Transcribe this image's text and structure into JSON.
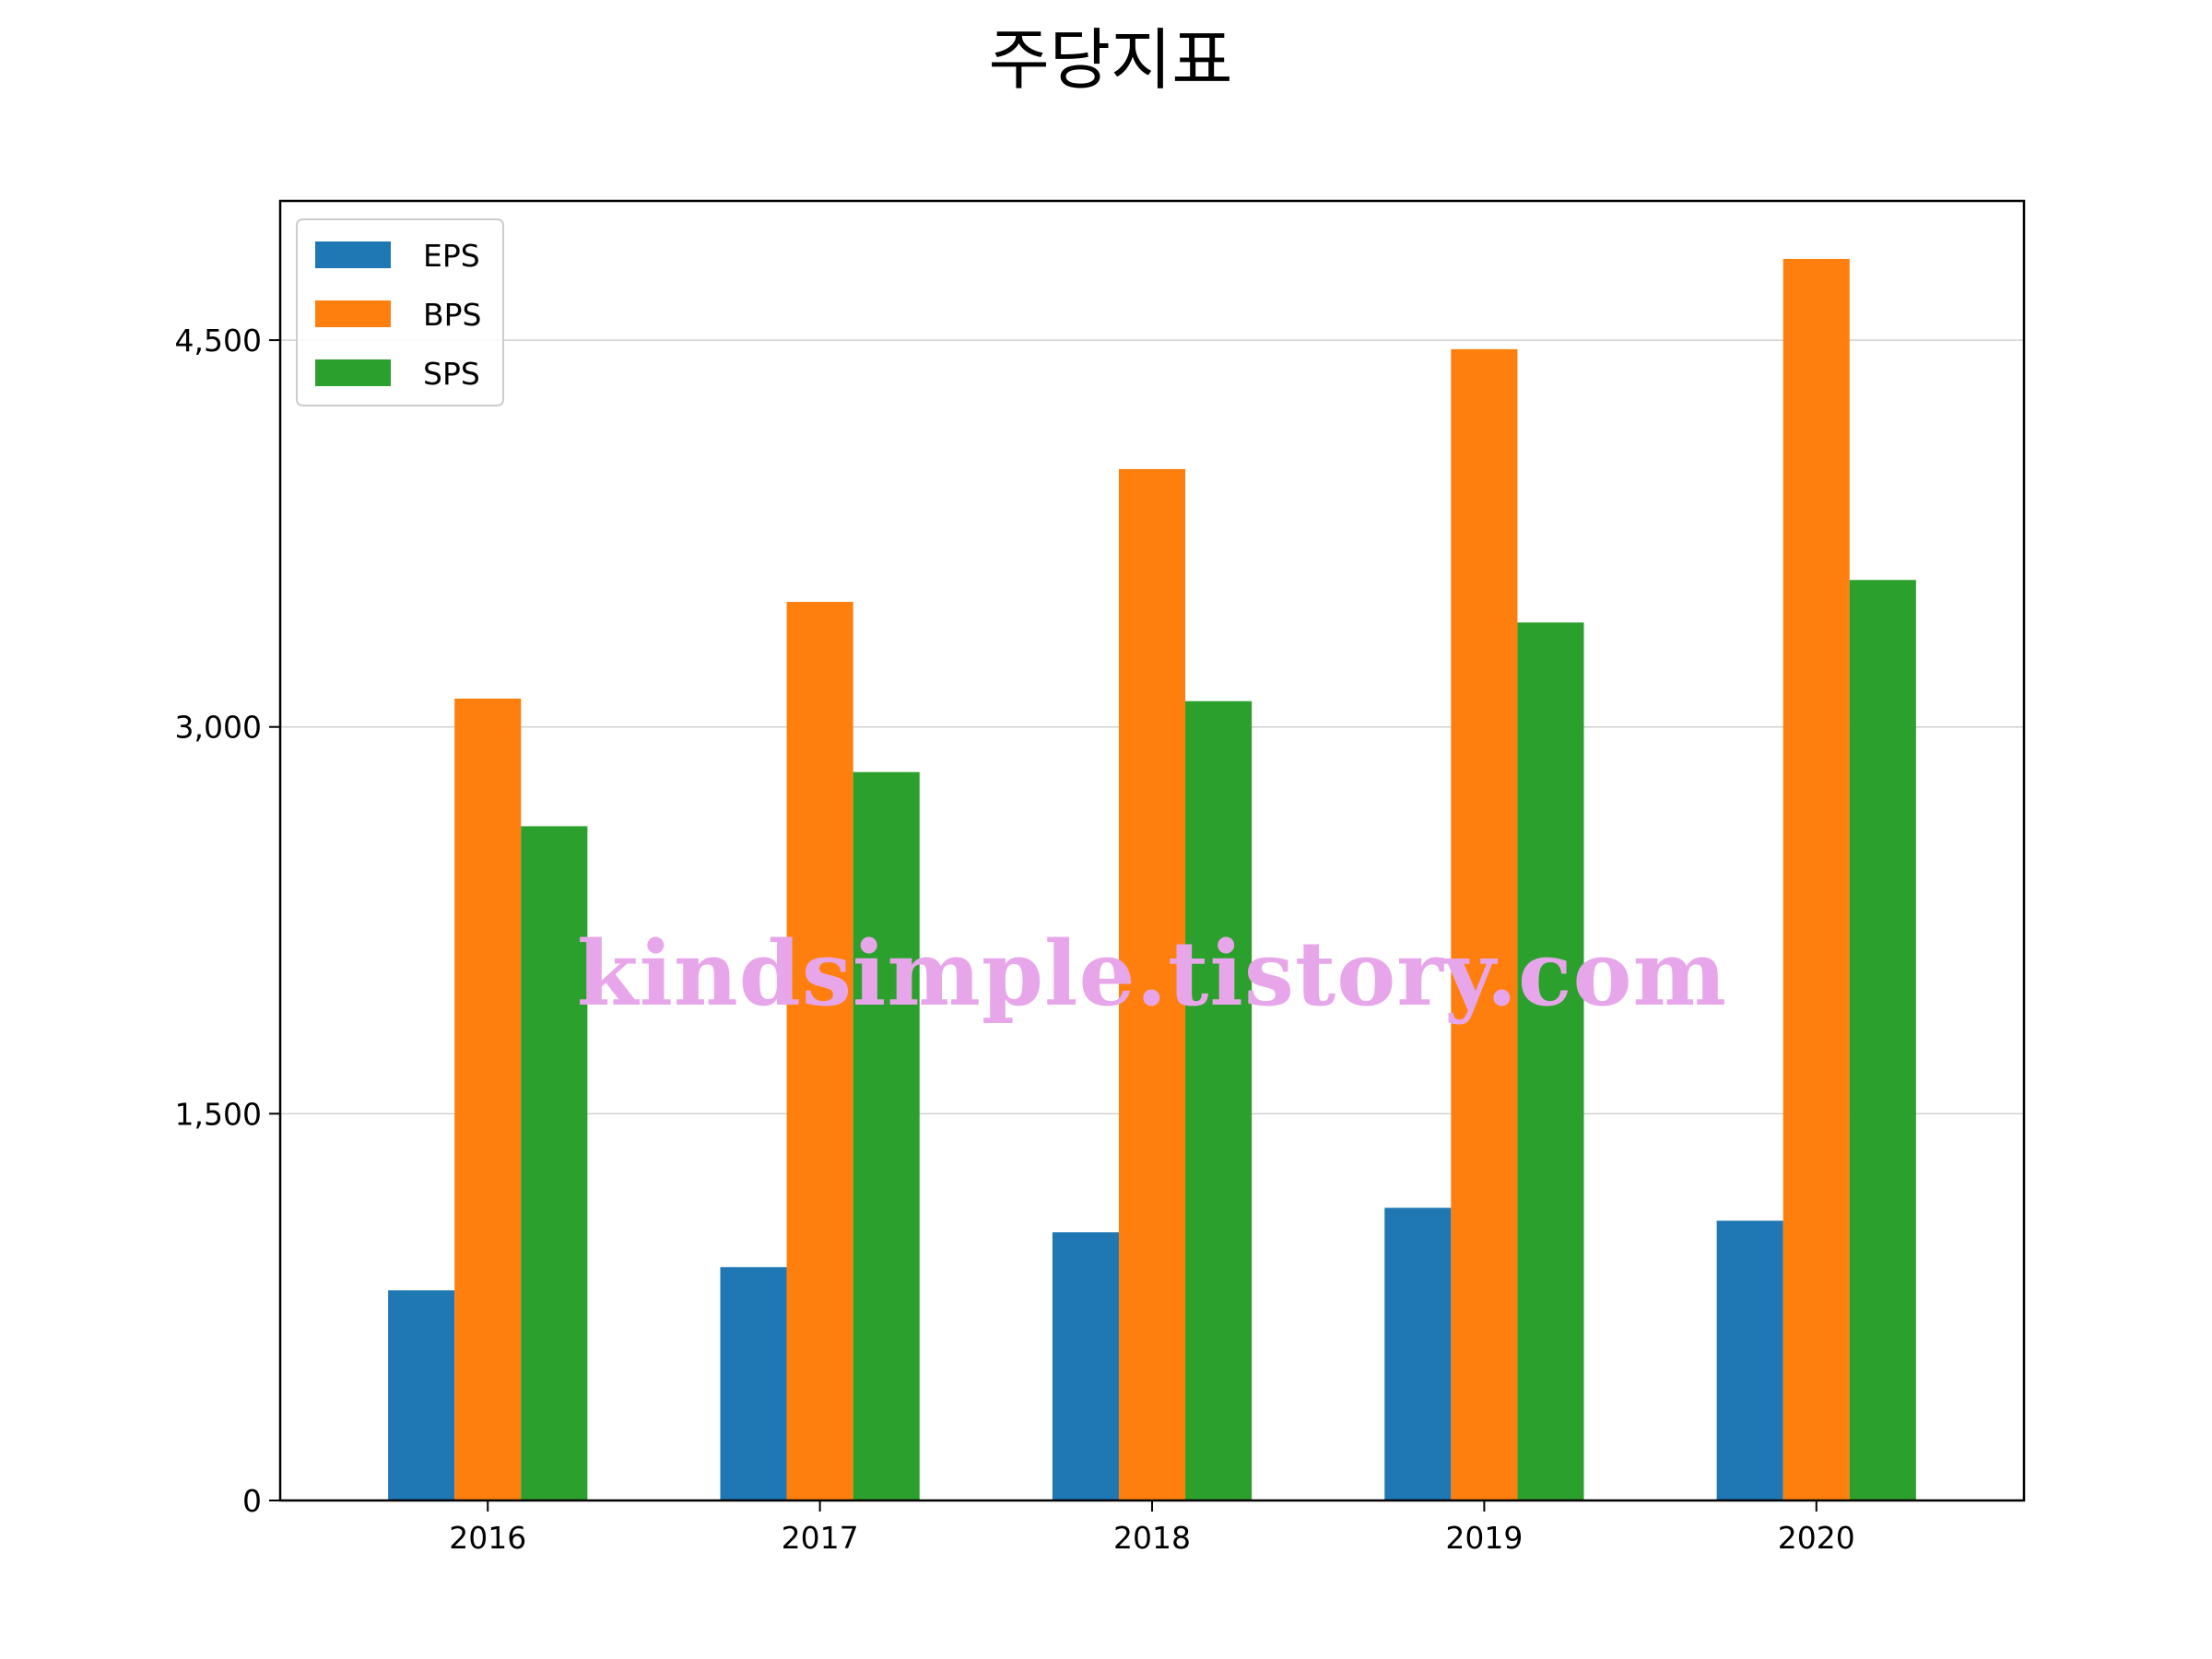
{
  "chart_data": {
    "type": "bar",
    "title": "주당지표",
    "xlabel": "",
    "ylabel": "",
    "categories": [
      "2016",
      "2017",
      "2018",
      "2019",
      "2020"
    ],
    "series": [
      {
        "name": "EPS",
        "color": "#1f77b4",
        "values": [
          815,
          905,
          1040,
          1135,
          1085
        ]
      },
      {
        "name": "BPS",
        "color": "#ff7f0e",
        "values": [
          3110,
          3485,
          4000,
          4465,
          4815
        ]
      },
      {
        "name": "SPS",
        "color": "#2ca02c",
        "values": [
          2615,
          2825,
          3100,
          3405,
          3570
        ]
      }
    ],
    "ylim": [
      0,
      5040
    ],
    "yticks": [
      0,
      1500,
      3000,
      4500
    ],
    "ytick_labels": [
      "0",
      "1,500",
      "3,000",
      "4,500"
    ],
    "grid": "y",
    "legend_position": "top-left"
  },
  "watermark": "kindsimple.tistory.com"
}
